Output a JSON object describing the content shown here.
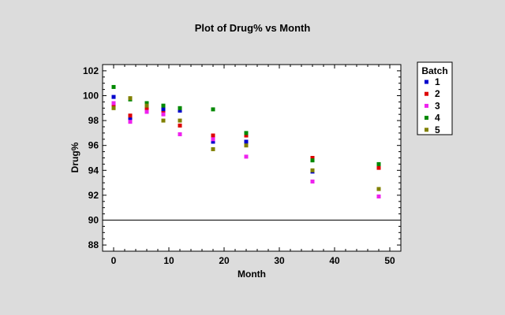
{
  "chart_data": {
    "type": "scatter",
    "title": "Plot of Drug% vs Month",
    "xlabel": "Month",
    "ylabel": "Drug%",
    "xlim": [
      -2,
      52
    ],
    "ylim": [
      87.5,
      102.5
    ],
    "xticks": [
      0,
      10,
      20,
      30,
      40,
      50
    ],
    "yticks": [
      88,
      90,
      92,
      94,
      96,
      98,
      100,
      102
    ],
    "reference_line": 90,
    "legend_title": "Batch",
    "series": [
      {
        "name": "1",
        "color": "#0000cc",
        "x": [
          0,
          3,
          6,
          9,
          12,
          18,
          24,
          36,
          48
        ],
        "y": [
          99.9,
          98.1,
          99.1,
          98.9,
          98.8,
          96.3,
          96.3,
          93.9,
          92.5
        ]
      },
      {
        "name": "2",
        "color": "#dd0000",
        "x": [
          0,
          3,
          6,
          9,
          12,
          18,
          24,
          36,
          48
        ],
        "y": [
          99.3,
          98.4,
          99.0,
          98.6,
          97.6,
          96.8,
          96.8,
          95.0,
          94.2
        ]
      },
      {
        "name": "3",
        "color": "#ee22ee",
        "x": [
          0,
          3,
          6,
          9,
          12,
          18,
          24,
          36,
          48
        ],
        "y": [
          99.4,
          97.9,
          98.7,
          98.5,
          96.9,
          96.5,
          95.1,
          93.1,
          91.9
        ]
      },
      {
        "name": "4",
        "color": "#008800",
        "x": [
          0,
          3,
          6,
          9,
          12,
          18,
          24,
          36,
          48
        ],
        "y": [
          100.7,
          99.7,
          99.4,
          99.2,
          99.0,
          98.9,
          97.0,
          94.8,
          94.5
        ]
      },
      {
        "name": "5",
        "color": "#808000",
        "x": [
          0,
          3,
          6,
          9,
          12,
          18,
          24,
          36,
          48
        ],
        "y": [
          99.0,
          99.8,
          99.2,
          98.0,
          98.0,
          95.7,
          96.0,
          94.0,
          92.5
        ]
      }
    ]
  }
}
